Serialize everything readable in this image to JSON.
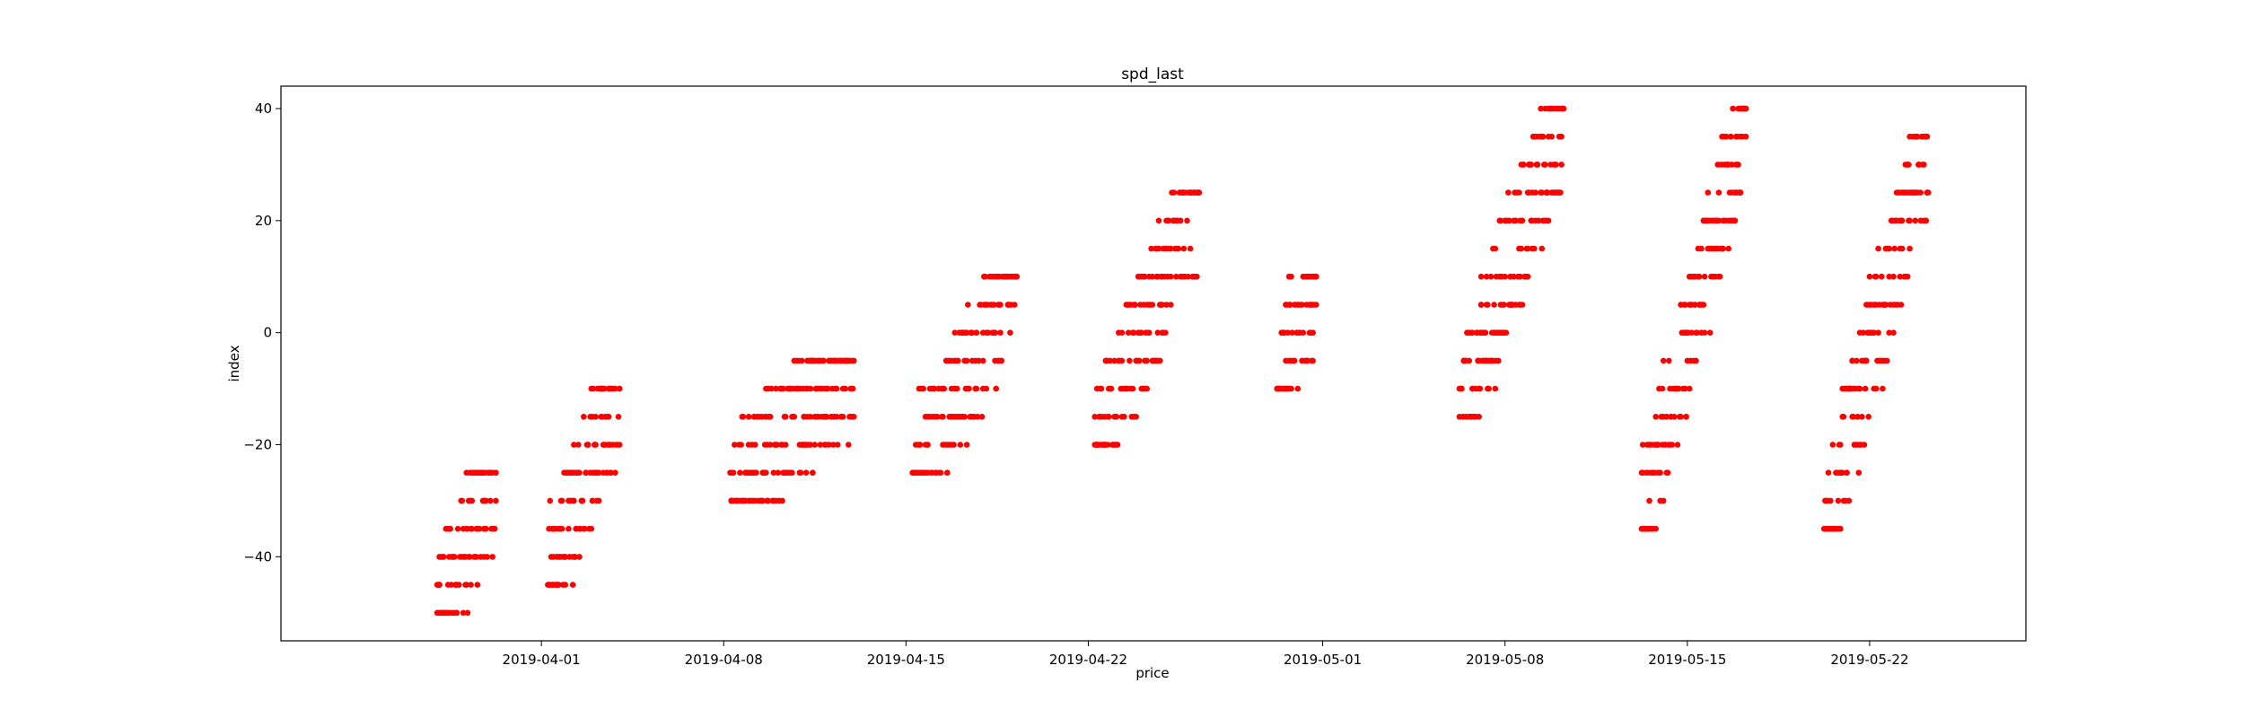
{
  "chart_data": {
    "type": "scatter",
    "title": "spd_last",
    "xlabel": "price",
    "ylabel": "index",
    "xlim": [
      "2019-03-22",
      "2019-05-28"
    ],
    "ylim": [
      -55,
      44
    ],
    "x_ticks": [
      "2019-04-01",
      "2019-04-08",
      "2019-04-15",
      "2019-04-22",
      "2019-05-01",
      "2019-05-08",
      "2019-05-15",
      "2019-05-22"
    ],
    "y_ticks": [
      -40,
      -20,
      0,
      20,
      40
    ],
    "grid": false,
    "legend": "none",
    "marker_color": "#ff0000",
    "clusters": [
      {
        "start": "2019-03-28T00:00",
        "end": "2019-03-30T06:00",
        "values": [
          -50,
          -45,
          -40,
          -35,
          -30,
          -25
        ]
      },
      {
        "start": "2019-04-01T06:00",
        "end": "2019-04-04T00:00",
        "values": [
          -45,
          -40,
          -35,
          -30,
          -25,
          -20,
          -15,
          -10
        ]
      },
      {
        "start": "2019-04-08T06:00",
        "end": "2019-04-13T00:00",
        "values": [
          -30,
          -25,
          -20,
          -15,
          -10,
          -5
        ]
      },
      {
        "start": "2019-04-15T06:00",
        "end": "2019-04-19T06:00",
        "values": [
          -25,
          -20,
          -15,
          -10,
          -5,
          0,
          5,
          10
        ]
      },
      {
        "start": "2019-04-22T06:00",
        "end": "2019-04-26T06:00",
        "values": [
          -20,
          -15,
          -10,
          -5,
          0,
          5,
          10,
          15,
          20,
          25
        ]
      },
      {
        "start": "2019-04-29T06:00",
        "end": "2019-04-30T18:00",
        "values": [
          -10,
          -5,
          0,
          5,
          10
        ]
      },
      {
        "start": "2019-05-06T06:00",
        "end": "2019-05-10T06:00",
        "values": [
          -15,
          -10,
          -5,
          0,
          5,
          10,
          15,
          20,
          25,
          30,
          35,
          40
        ]
      },
      {
        "start": "2019-05-13T06:00",
        "end": "2019-05-17T06:00",
        "values": [
          -35,
          -30,
          -25,
          -20,
          -15,
          -10,
          -5,
          0,
          5,
          10,
          15,
          20,
          25,
          30,
          35,
          40
        ]
      },
      {
        "start": "2019-05-20T06:00",
        "end": "2019-05-24T06:00",
        "values": [
          -35,
          -30,
          -25,
          -20,
          -15,
          -10,
          -5,
          0,
          5,
          10,
          15,
          20,
          25,
          30,
          35
        ]
      }
    ]
  }
}
